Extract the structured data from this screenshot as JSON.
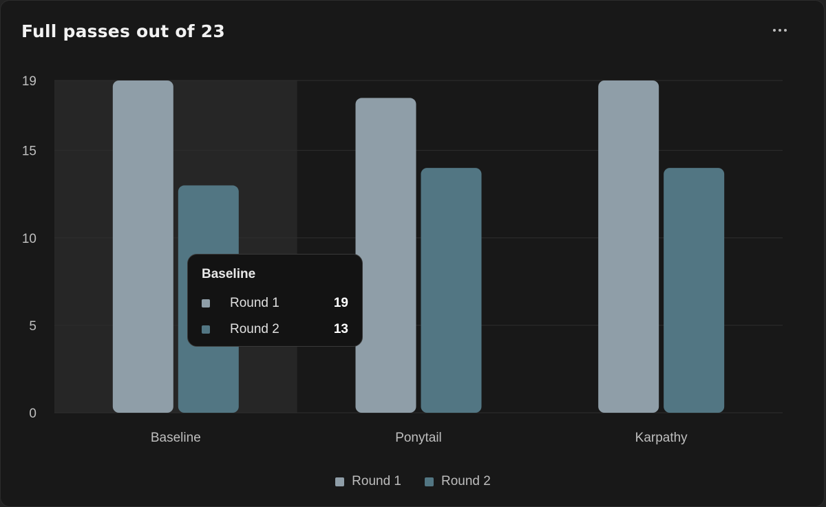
{
  "card": {
    "title": "Full passes out of 23",
    "menu_icon": "more-horizontal-icon"
  },
  "colors": {
    "background": "#181818",
    "round1": "#8f9ea8",
    "round2": "#527683",
    "highlight": "#262626",
    "grid": "#2e2e2e",
    "axis_text": "#bfbfbf"
  },
  "chart_data": {
    "type": "bar",
    "title": "Full passes out of 23",
    "categories": [
      "Baseline",
      "Ponytail",
      "Karpathy"
    ],
    "series": [
      {
        "name": "Round 1",
        "values": [
          19,
          18,
          19
        ]
      },
      {
        "name": "Round 2",
        "values": [
          13,
          14,
          14
        ]
      }
    ],
    "yticks": [
      0,
      5,
      10,
      15,
      19
    ],
    "ylim": [
      0,
      19
    ],
    "xlabel": "",
    "ylabel": "",
    "grid": true,
    "legend": "bottom-center",
    "highlighted_category": "Baseline"
  },
  "tooltip": {
    "title": "Baseline",
    "rows": [
      {
        "label": "Round 1",
        "value": "19"
      },
      {
        "label": "Round 2",
        "value": "13"
      }
    ]
  },
  "legend": [
    {
      "label": "Round 1"
    },
    {
      "label": "Round 2"
    }
  ]
}
